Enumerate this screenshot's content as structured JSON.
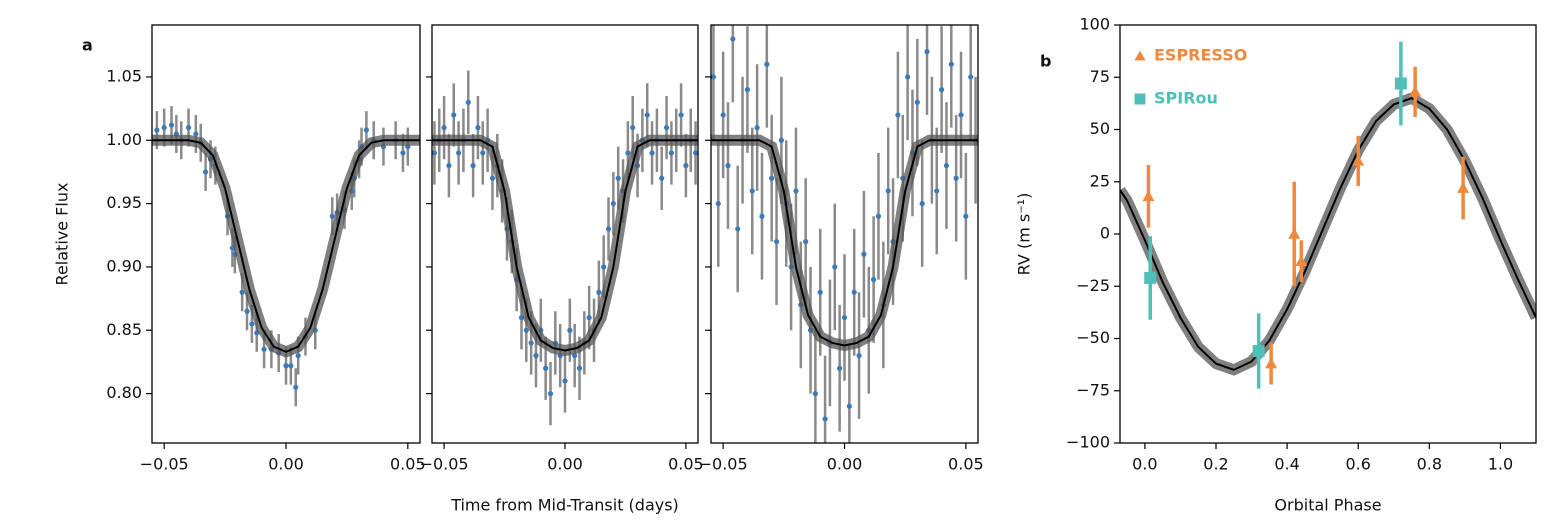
{
  "panel_labels": [
    "a",
    "b"
  ],
  "chart_data": [
    {
      "type": "errorbar",
      "ylabel": "Relative Flux",
      "xlim": [
        -0.055,
        0.055
      ],
      "ylim": [
        0.761,
        1.091
      ],
      "xticks": [
        {
          "value": -0.05,
          "label": "−0.05"
        },
        {
          "value": 0,
          "label": "0.00"
        },
        {
          "value": 0.05,
          "label": "0.05"
        }
      ],
      "yticks": [
        {
          "value": 0.8,
          "label": "0.80"
        },
        {
          "value": 0.85,
          "label": "0.85"
        },
        {
          "value": 0.9,
          "label": "0.90"
        },
        {
          "value": 0.95,
          "label": "0.95"
        },
        {
          "value": 1,
          "label": "1.00"
        },
        {
          "value": 1.05,
          "label": "1.05"
        }
      ],
      "series": [
        {
          "style": "points",
          "marker": "o",
          "color": "#3d7ab8",
          "errcolor": "#8a8a8a",
          "error": 0.015,
          "x": [
            -0.053,
            -0.05,
            -0.047,
            -0.045,
            -0.043,
            -0.04,
            -0.037,
            -0.035,
            -0.033,
            -0.031,
            -0.029,
            -0.024,
            -0.022,
            -0.021,
            -0.018,
            -0.016,
            -0.014,
            -0.012,
            -0.009,
            -0.006,
            -0.003,
            0,
            0.002,
            0.004,
            0.005,
            0.008,
            0.012,
            0.019,
            0.021,
            0.024,
            0.027,
            0.028,
            0.03,
            0.031,
            0.033,
            0.036,
            0.04,
            0.045,
            0.048,
            0.05
          ],
          "values": [
            1.008,
            1.01,
            1.012,
            1.005,
            1.0,
            1.01,
            1.005,
            0.998,
            0.975,
            0.985,
            0.98,
            0.94,
            0.915,
            0.91,
            0.88,
            0.865,
            0.855,
            0.848,
            0.835,
            0.835,
            0.832,
            0.822,
            0.822,
            0.805,
            0.83,
            0.845,
            0.85,
            0.94,
            0.943,
            0.945,
            0.96,
            0.97,
            0.985,
            0.995,
            1.008,
            1.0,
            0.995,
            1.0,
            0.99,
            0.995
          ]
        },
        {
          "style": "line",
          "color": "#000000",
          "x": [
            -0.055,
            -0.05,
            -0.045,
            -0.04,
            -0.035,
            -0.03,
            -0.025,
            -0.02,
            -0.015,
            -0.01,
            -0.005,
            0,
            0.005,
            0.01,
            0.015,
            0.02,
            0.025,
            0.03,
            0.035,
            0.04,
            0.045,
            0.05,
            0.055
          ],
          "values": [
            1,
            1,
            1,
            1,
            0.998,
            0.988,
            0.962,
            0.922,
            0.882,
            0.852,
            0.837,
            0.833,
            0.837,
            0.852,
            0.882,
            0.922,
            0.962,
            0.988,
            0.998,
            1,
            1,
            1,
            1
          ]
        }
      ]
    },
    {
      "type": "errorbar",
      "xlabel": "Time from Mid-Transit (days)",
      "xlim": [
        -0.055,
        0.055
      ],
      "ylim": [
        0.761,
        1.091
      ],
      "xticks": [
        {
          "value": -0.05,
          "label": "−0.05"
        },
        {
          "value": 0,
          "label": "0.00"
        },
        {
          "value": 0.05,
          "label": "0.05"
        }
      ],
      "yticks": [
        0.8,
        0.85,
        0.9,
        0.95,
        1,
        1.05
      ],
      "ytick_labels": false,
      "series": [
        {
          "style": "points",
          "marker": "o",
          "color": "#3d7ab8",
          "errcolor": "#8a8a8a",
          "error": 0.025,
          "x": [
            -0.054,
            -0.052,
            -0.05,
            -0.048,
            -0.046,
            -0.044,
            -0.042,
            -0.04,
            -0.038,
            -0.036,
            -0.034,
            -0.032,
            -0.03,
            -0.028,
            -0.026,
            -0.024,
            -0.022,
            -0.02,
            -0.018,
            -0.016,
            -0.014,
            -0.012,
            -0.01,
            -0.008,
            -0.006,
            -0.004,
            -0.002,
            0,
            0.002,
            0.004,
            0.006,
            0.008,
            0.01,
            0.012,
            0.014,
            0.016,
            0.018,
            0.02,
            0.022,
            0.024,
            0.026,
            0.028,
            0.03,
            0.032,
            0.034,
            0.036,
            0.038,
            0.04,
            0.042,
            0.044,
            0.046,
            0.048,
            0.05,
            0.052,
            0.054
          ],
          "values": [
            0.99,
            1.0,
            1.01,
            0.98,
            1.02,
            0.99,
            1.0,
            1.03,
            0.98,
            1.01,
            0.99,
            1.0,
            0.97,
            0.98,
            0.96,
            0.93,
            0.92,
            0.89,
            0.86,
            0.85,
            0.84,
            0.83,
            0.85,
            0.82,
            0.8,
            0.84,
            0.83,
            0.81,
            0.85,
            0.83,
            0.82,
            0.84,
            0.86,
            0.85,
            0.88,
            0.9,
            0.93,
            0.95,
            0.97,
            0.96,
            0.99,
            1.01,
            0.98,
            1.0,
            1.02,
            0.99,
            1.0,
            0.97,
            1.01,
            0.99,
            1.0,
            1.02,
            0.98,
            1.0,
            0.99
          ]
        },
        {
          "style": "line",
          "color": "#000000",
          "x": [
            -0.055,
            -0.05,
            -0.045,
            -0.04,
            -0.035,
            -0.03,
            -0.025,
            -0.02,
            -0.015,
            -0.01,
            -0.005,
            0,
            0.005,
            0.01,
            0.015,
            0.02,
            0.025,
            0.03,
            0.035,
            0.04,
            0.045,
            0.05,
            0.055
          ],
          "values": [
            1,
            1,
            1,
            1,
            1,
            0.995,
            0.96,
            0.9,
            0.86,
            0.842,
            0.836,
            0.834,
            0.836,
            0.842,
            0.86,
            0.9,
            0.96,
            0.995,
            1,
            1,
            1,
            1,
            1
          ]
        }
      ]
    },
    {
      "type": "errorbar",
      "xlim": [
        -0.055,
        0.055
      ],
      "ylim": [
        0.761,
        1.091
      ],
      "xticks": [
        {
          "value": -0.05,
          "label": "−0.05"
        },
        {
          "value": 0,
          "label": "0.00"
        },
        {
          "value": 0.05,
          "label": "0.05"
        }
      ],
      "yticks": [
        0.8,
        0.85,
        0.9,
        0.95,
        1,
        1.05
      ],
      "ytick_labels": false,
      "series": [
        {
          "style": "points",
          "marker": "o",
          "color": "#3d7ab8",
          "errcolor": "#8a8a8a",
          "error": 0.05,
          "x": [
            -0.054,
            -0.052,
            -0.05,
            -0.048,
            -0.046,
            -0.044,
            -0.042,
            -0.04,
            -0.038,
            -0.036,
            -0.034,
            -0.032,
            -0.03,
            -0.028,
            -0.026,
            -0.024,
            -0.022,
            -0.02,
            -0.018,
            -0.016,
            -0.014,
            -0.012,
            -0.01,
            -0.008,
            -0.006,
            -0.004,
            -0.002,
            0,
            0.002,
            0.004,
            0.006,
            0.008,
            0.01,
            0.012,
            0.014,
            0.016,
            0.018,
            0.02,
            0.022,
            0.024,
            0.026,
            0.028,
            0.03,
            0.032,
            0.034,
            0.036,
            0.038,
            0.04,
            0.042,
            0.044,
            0.046,
            0.048,
            0.05,
            0.052,
            0.054
          ],
          "values": [
            1.05,
            0.95,
            1.02,
            0.98,
            1.08,
            0.93,
            1.0,
            1.04,
            0.96,
            1.01,
            0.94,
            1.06,
            0.97,
            0.92,
            1.0,
            0.95,
            0.9,
            0.96,
            0.87,
            0.92,
            0.85,
            0.8,
            0.88,
            0.78,
            0.84,
            0.9,
            0.82,
            0.86,
            0.79,
            0.88,
            0.83,
            0.91,
            0.85,
            0.89,
            0.94,
            0.87,
            0.96,
            0.92,
            1.02,
            0.97,
            1.05,
            0.99,
            1.03,
            0.95,
            1.07,
            1.0,
            0.96,
            1.04,
            0.98,
            1.06,
            0.97,
            1.02,
            0.94,
            1.05,
            1.0
          ]
        },
        {
          "style": "line",
          "color": "#000000",
          "x": [
            -0.055,
            -0.05,
            -0.045,
            -0.04,
            -0.035,
            -0.03,
            -0.025,
            -0.02,
            -0.015,
            -0.01,
            -0.005,
            0,
            0.005,
            0.01,
            0.015,
            0.02,
            0.025,
            0.03,
            0.035,
            0.04,
            0.045,
            0.05,
            0.055
          ],
          "values": [
            1,
            1,
            1,
            1,
            1,
            0.995,
            0.96,
            0.9,
            0.862,
            0.845,
            0.84,
            0.838,
            0.84,
            0.845,
            0.862,
            0.9,
            0.96,
            0.995,
            1,
            1,
            1,
            1,
            1
          ]
        }
      ]
    },
    {
      "type": "errorbar",
      "xlabel": "Orbital Phase",
      "ylabel": "RV (m s⁻¹)",
      "legend": "upper left",
      "xlim": [
        -0.07,
        1.1
      ],
      "ylim": [
        -100,
        100
      ],
      "xticks": [
        {
          "value": 0,
          "label": "0.0"
        },
        {
          "value": 0.2,
          "label": "0.2"
        },
        {
          "value": 0.4,
          "label": "0.4"
        },
        {
          "value": 0.6,
          "label": "0.6"
        },
        {
          "value": 0.8,
          "label": "0.8"
        },
        {
          "value": 1,
          "label": "1.0"
        }
      ],
      "yticks": [
        {
          "value": -100,
          "label": "−100"
        },
        {
          "value": -75,
          "label": "−75"
        },
        {
          "value": -50,
          "label": "−50"
        },
        {
          "value": -25,
          "label": "−25"
        },
        0,
        25,
        50,
        75,
        100
      ],
      "series": [
        {
          "style": "line",
          "color": "#000000",
          "x": [
            -0.07,
            -0.05,
            0,
            0.05,
            0.1,
            0.15,
            0.2,
            0.25,
            0.3,
            0.35,
            0.4,
            0.45,
            0.5,
            0.55,
            0.6,
            0.65,
            0.7,
            0.75,
            0.8,
            0.85,
            0.9,
            0.95,
            1,
            1.05,
            1.1
          ],
          "values": [
            21,
            16,
            -3,
            -23,
            -40,
            -54,
            -62,
            -65,
            -61,
            -51,
            -36,
            -18,
            2,
            22,
            40,
            54,
            62,
            65,
            60,
            50,
            35,
            17,
            -3,
            -22,
            -40
          ]
        },
        {
          "style": "points",
          "name": "ESPRESSO",
          "marker": "^",
          "color": "#f0883e",
          "x": [
            0.01,
            0.42,
            0.44,
            0.355,
            0.6,
            0.76,
            0.895
          ],
          "values": [
            18,
            0,
            -13,
            -62,
            35,
            68,
            22
          ],
          "errors": [
            15,
            25,
            10,
            10,
            12,
            12,
            15
          ]
        },
        {
          "style": "points",
          "name": "SPIRou",
          "marker": "s",
          "color": "#4fbfb8",
          "x": [
            0.015,
            0.32,
            0.72
          ],
          "values": [
            -21,
            -56,
            72
          ],
          "errors": [
            20,
            18,
            20
          ]
        }
      ]
    }
  ]
}
